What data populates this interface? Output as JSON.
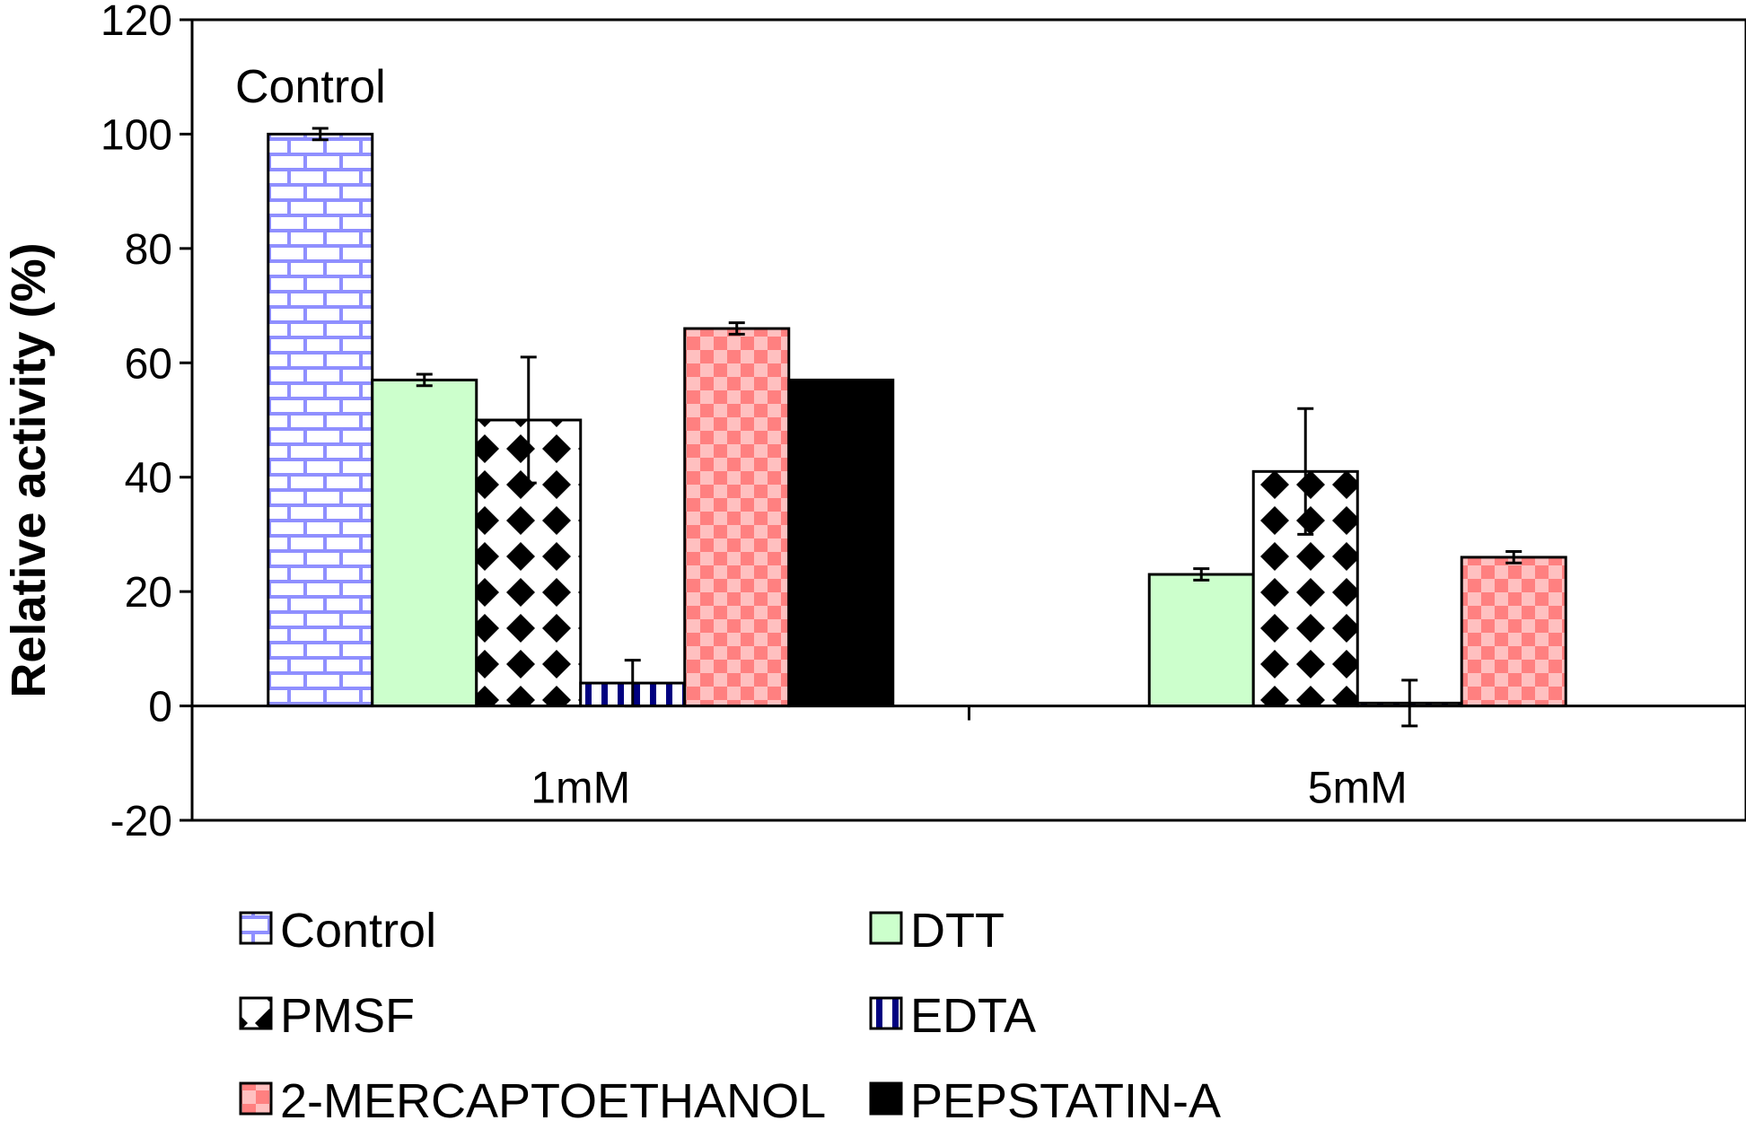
{
  "chart_data": {
    "type": "bar",
    "title": "",
    "xlabel": "",
    "ylabel": "Relative activity (%)",
    "ylim": [
      -20,
      120
    ],
    "yticks": [
      120,
      100,
      80,
      60,
      40,
      20,
      0,
      -20
    ],
    "grid": false,
    "legend_position": "bottom",
    "categories": [
      "1mM",
      "5mM"
    ],
    "annotation": "Control",
    "series": [
      {
        "name": "Control",
        "values": [
          100,
          null
        ],
        "errors": [
          1,
          null
        ],
        "color": "#8f8fff",
        "pattern": "brick"
      },
      {
        "name": "DTT",
        "values": [
          57,
          23
        ],
        "errors": [
          1,
          1
        ],
        "color": "#ccffcc",
        "pattern": "solid"
      },
      {
        "name": "PMSF",
        "values": [
          50,
          41
        ],
        "errors": [
          11,
          11
        ],
        "color": "#000000",
        "pattern": "diamond"
      },
      {
        "name": "EDTA",
        "values": [
          4,
          0.5
        ],
        "errors": [
          4,
          4
        ],
        "color": "#000080",
        "pattern": "vertical-stripes"
      },
      {
        "name": "2-MERCAPTOETHANOL",
        "values": [
          66,
          26
        ],
        "errors": [
          1,
          1
        ],
        "color": "#ff8080",
        "pattern": "checker"
      },
      {
        "name": "PEPSTATIN-A",
        "values": [
          57,
          null
        ],
        "errors": [
          null,
          null
        ],
        "color": "#000000",
        "pattern": "solid"
      }
    ]
  }
}
